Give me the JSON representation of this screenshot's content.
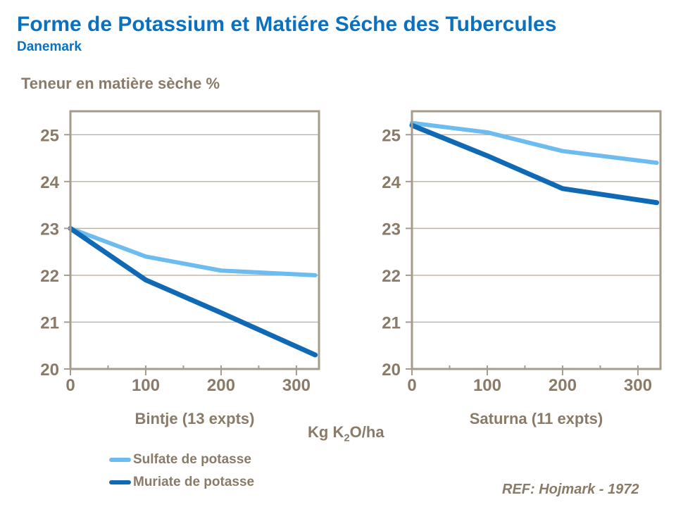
{
  "header": {
    "title": "Forme de Potassium et Matiére Séche des Tubercules",
    "subtitle": "Danemark"
  },
  "axis_title": "Teneur en matière sèche %",
  "x_axis_unit": {
    "prefix": "Kg K",
    "sub": "2",
    "suffix": "O/ha"
  },
  "legend": [
    {
      "label": "Sulfate de potasse",
      "color": "#6CBCF0"
    },
    {
      "label": "Muriate de potasse",
      "color": "#1069B4"
    }
  ],
  "reference": "REF: Hojmark - 1972",
  "colors": {
    "title_blue": "#0A70C0",
    "text_brown": "#8A7A68",
    "frame": "#A69C8E",
    "gridline": "#BBB1A4",
    "sulfate": "#6CBCF0",
    "muriate": "#1069B4",
    "background": "#FFFFFF"
  },
  "chart_data": [
    {
      "type": "line",
      "name": "bintje",
      "title": "Bintje (13 expts)",
      "xlabel": "Bintje (13 expts)",
      "ylabel": "Teneur en matière sèche %",
      "x": [
        0,
        100,
        200,
        325
      ],
      "series": [
        {
          "name": "Sulfate de potasse",
          "color": "#6CBCF0",
          "values": [
            23.0,
            22.4,
            22.1,
            22.0
          ]
        },
        {
          "name": "Muriate de potasse",
          "color": "#1069B4",
          "values": [
            23.0,
            21.9,
            21.2,
            20.3
          ]
        }
      ],
      "xticks": [
        0,
        100,
        200,
        300
      ],
      "minor_xticks": [
        50,
        150,
        250
      ],
      "yticks": [
        20,
        21,
        22,
        23,
        24,
        25
      ],
      "xlim": [
        0,
        330
      ],
      "ylim": [
        20,
        25.5
      ],
      "grid": "horizontal",
      "legend_position": "below-left"
    },
    {
      "type": "line",
      "name": "saturna",
      "title": "Saturna (11 expts)",
      "xlabel": "Saturna (11 expts)",
      "ylabel": "Teneur en matière sèche %",
      "x": [
        0,
        100,
        200,
        325
      ],
      "series": [
        {
          "name": "Sulfate de potasse",
          "color": "#6CBCF0",
          "values": [
            25.25,
            25.05,
            24.65,
            24.4
          ]
        },
        {
          "name": "Muriate de potasse",
          "color": "#1069B4",
          "values": [
            25.2,
            24.55,
            23.85,
            23.55
          ]
        }
      ],
      "xticks": [
        0,
        100,
        200,
        300
      ],
      "minor_xticks": [
        50,
        150,
        250
      ],
      "yticks": [
        20,
        21,
        22,
        23,
        24,
        25
      ],
      "xlim": [
        0,
        330
      ],
      "ylim": [
        20,
        25.5
      ],
      "grid": "horizontal",
      "legend_position": "none"
    }
  ]
}
